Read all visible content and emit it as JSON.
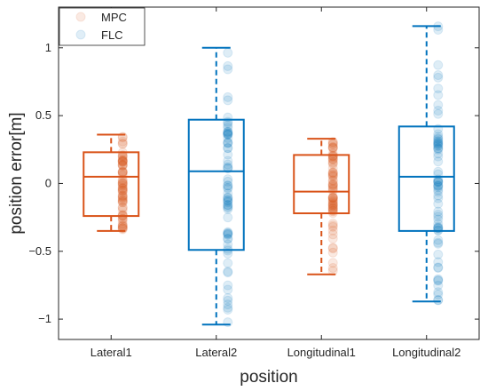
{
  "chart_data": {
    "type": "box",
    "xlabel": "position",
    "ylabel": "position error[m]",
    "ylim": [
      -1.15,
      1.3
    ],
    "yticks": [
      -1,
      -0.5,
      0,
      0.5,
      1
    ],
    "ytick_labels": [
      "−1",
      "−0.5",
      "0",
      "0.5",
      "1"
    ],
    "categories": [
      "Lateral1",
      "Lateral2",
      "Longitudinal1",
      "Longitudinal2"
    ],
    "legend": {
      "position": "top-left",
      "entries": [
        "MPC",
        "FLC"
      ]
    },
    "grid": false,
    "series": [
      {
        "name": "MPC",
        "color": "#d95319",
        "category_indices": [
          0,
          2
        ]
      },
      {
        "name": "FLC",
        "color": "#0072bd",
        "category_indices": [
          1,
          3
        ]
      }
    ],
    "boxes": [
      {
        "category": "Lateral1",
        "series": "MPC",
        "whisker_low": -0.35,
        "q1": -0.24,
        "median": 0.05,
        "q3": 0.23,
        "whisker_high": 0.36
      },
      {
        "category": "Lateral2",
        "series": "FLC",
        "whisker_low": -1.04,
        "q1": -0.49,
        "median": 0.09,
        "q3": 0.47,
        "whisker_high": 1.0
      },
      {
        "category": "Longitudinal1",
        "series": "MPC",
        "whisker_low": -0.67,
        "q1": -0.22,
        "median": -0.06,
        "q3": 0.21,
        "whisker_high": 0.33
      },
      {
        "category": "Longitudinal2",
        "series": "FLC",
        "whisker_low": -0.87,
        "q1": -0.35,
        "median": 0.05,
        "q3": 0.42,
        "whisker_high": 1.16
      }
    ]
  }
}
